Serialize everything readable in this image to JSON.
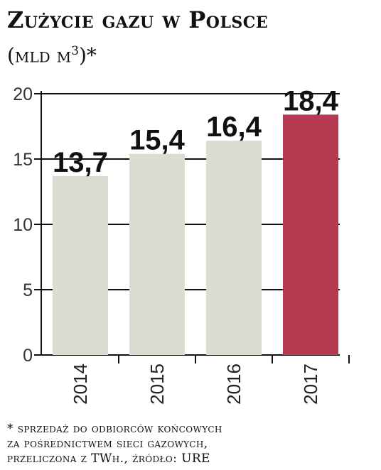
{
  "header": {
    "title": "Zużycie gazu w Polsce",
    "unit_open": "(mld m",
    "unit_sup": "3",
    "unit_close": ")*"
  },
  "chart_data": {
    "type": "bar",
    "title": "Zużycie gazu w Polsce",
    "subtitle": "(mld m3)*",
    "categories": [
      "2014",
      "2015",
      "2016",
      "2017"
    ],
    "values": [
      13.7,
      15.4,
      16.4,
      18.4
    ],
    "value_labels": [
      "13,7",
      "15,4",
      "16,4",
      "18,4"
    ],
    "yticks": [
      0,
      5,
      10,
      15,
      20
    ],
    "ylim": [
      0,
      20
    ],
    "grid": true,
    "colors": {
      "default": "#dcdcd2",
      "highlight": "#b43a52",
      "grid": "#111111"
    },
    "highlight_index": 3
  },
  "footnote": {
    "lines": [
      "* sprzedaż do odbiorców końcowych",
      "za pośrednictwem sieci gazowych,",
      "przeliczona z TWh., źródło: URE"
    ]
  }
}
